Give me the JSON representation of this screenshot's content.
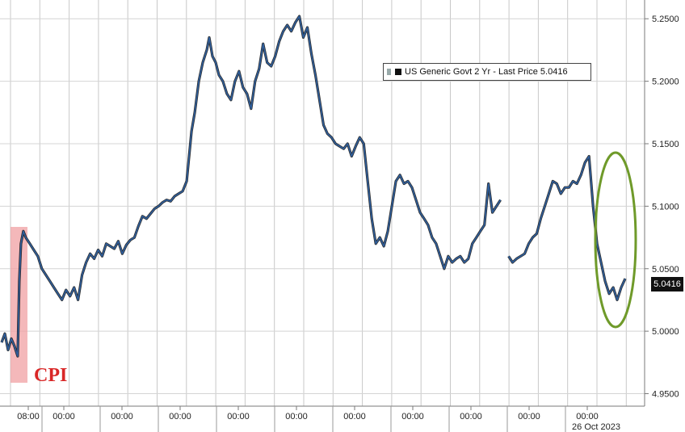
{
  "chart_data": {
    "type": "line",
    "title": "",
    "xlabel": "",
    "ylabel": "",
    "ylim": [
      4.94,
      5.265
    ],
    "y_ticks": [
      "5.2500",
      "5.2000",
      "5.1500",
      "5.1000",
      "5.0500",
      "5.0000",
      "4.9500"
    ],
    "x_tick_labels": [
      "08:00",
      "00:00",
      "00:00",
      "00:00",
      "00:00",
      "00:00",
      "00:00",
      "00:00",
      "00:00",
      "00:00",
      "00:00",
      "00:00"
    ],
    "x_date_label": "26 Oct 2023",
    "grid": true,
    "legend": "top-right",
    "series": [
      {
        "name": "US Generic Govt 2 Yr - Last Price 5.0416",
        "color": "#2e5f9e",
        "x": [
          0,
          4,
          8,
          12,
          16,
          20,
          22,
          24,
          27,
          30,
          35,
          40,
          45,
          50,
          55,
          60,
          65,
          70,
          75,
          80,
          85,
          90,
          95,
          100,
          105,
          110,
          115,
          120,
          125,
          130,
          135,
          140,
          145,
          150,
          155,
          160,
          165,
          170,
          175,
          180,
          185,
          190,
          195,
          200,
          205,
          210,
          215,
          220,
          225,
          230,
          233,
          236,
          240,
          245,
          250,
          255,
          258,
          262,
          266,
          270,
          275,
          280,
          285,
          290,
          295,
          300,
          305,
          310,
          315,
          320,
          325,
          330,
          335,
          340,
          345,
          350,
          355,
          360,
          365,
          370,
          375,
          380,
          385,
          390,
          395,
          400,
          405,
          410,
          415,
          420,
          425,
          430,
          435,
          440,
          445,
          450,
          455,
          460,
          465,
          470,
          475,
          480,
          485,
          490,
          495,
          500,
          505,
          510,
          515,
          520,
          525,
          530,
          535,
          540,
          545,
          550,
          555,
          560,
          565,
          570,
          575,
          580,
          585,
          590,
          595,
          600,
          605,
          610,
          615,
          620,
          625,
          630,
          635,
          640,
          645,
          650,
          655,
          660,
          665,
          670,
          675,
          680,
          685,
          690,
          695,
          700,
          705,
          710,
          715,
          720,
          725,
          730,
          735,
          740,
          745,
          750,
          755,
          760,
          765,
          770,
          775
        ],
        "y": [
          4.991,
          4.998,
          4.985,
          4.994,
          4.988,
          4.98,
          5.04,
          5.07,
          5.08,
          5.075,
          5.07,
          5.065,
          5.06,
          5.05,
          5.045,
          5.04,
          5.035,
          5.03,
          5.025,
          5.033,
          5.028,
          5.035,
          5.025,
          5.045,
          5.055,
          5.062,
          5.058,
          5.065,
          5.06,
          5.07,
          5.068,
          5.066,
          5.072,
          5.062,
          5.069,
          5.073,
          5.075,
          5.084,
          5.092,
          5.09,
          5.094,
          5.098,
          5.1,
          5.103,
          5.105,
          5.104,
          5.108,
          5.11,
          5.112,
          5.12,
          5.14,
          5.16,
          5.175,
          5.2,
          5.215,
          5.225,
          5.235,
          5.22,
          5.215,
          5.205,
          5.2,
          5.19,
          5.185,
          5.2,
          5.208,
          5.195,
          5.19,
          5.178,
          5.2,
          5.21,
          5.23,
          5.215,
          5.212,
          5.22,
          5.232,
          5.24,
          5.245,
          5.24,
          5.247,
          5.252,
          5.235,
          5.243,
          5.222,
          5.205,
          5.185,
          5.165,
          5.158,
          5.155,
          5.15,
          5.148,
          5.146,
          5.15,
          5.14,
          5.148,
          5.155,
          5.15,
          5.12,
          5.09,
          5.07,
          5.075,
          5.068,
          5.08,
          5.1,
          5.12,
          5.125,
          5.118,
          5.12,
          5.115,
          5.105,
          5.095,
          5.09,
          5.085,
          5.075,
          5.07,
          5.06,
          5.05,
          5.06,
          5.055,
          5.058,
          5.06,
          5.055,
          5.058,
          5.07,
          5.075,
          5.08,
          5.085,
          5.118,
          5.095,
          5.1,
          5.105,
          null,
          5.06,
          5.055,
          5.058,
          5.06,
          5.062,
          5.07,
          5.075,
          5.078,
          5.09,
          5.1,
          5.11,
          5.12,
          5.118,
          5.11,
          5.115,
          5.115,
          5.12,
          5.118,
          5.125,
          5.135,
          5.14,
          5.1,
          5.07,
          5.055,
          5.04,
          5.03,
          5.035,
          5.025,
          5.035,
          5.042
        ]
      }
    ],
    "annotations": [
      {
        "text": "CPI",
        "color": "#d92727"
      }
    ],
    "last_value_label": "5.0416"
  }
}
